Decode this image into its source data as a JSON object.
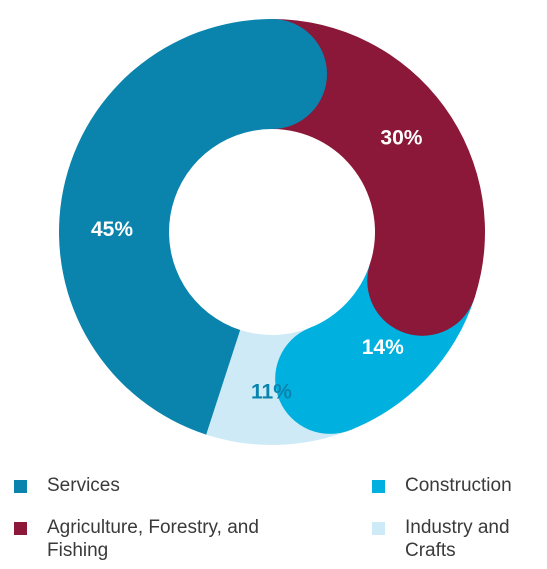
{
  "chart_data": {
    "type": "pie",
    "variant": "donut",
    "slices": [
      {
        "label": "Services",
        "value": 45,
        "display": "45%",
        "color": "#0a84ad"
      },
      {
        "label": "Agriculture, Forestry, and Fishing",
        "value": 30,
        "display": "30%",
        "color": "#8b1838"
      },
      {
        "label": "Construction",
        "value": 14,
        "display": "14%",
        "color": "#00b1e0"
      },
      {
        "label": "Industry and Crafts",
        "value": 11,
        "display": "11%",
        "color": "#cdeaf6"
      }
    ],
    "legend_position": "bottom"
  }
}
